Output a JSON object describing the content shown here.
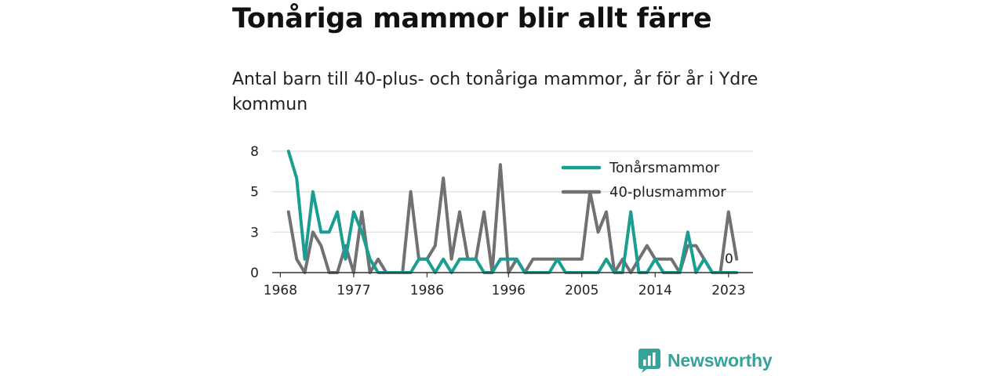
{
  "title": "Tonåriga mammor blir allt färre",
  "subtitle": "Antal barn till 40-plus- och tonåriga mammor, år för år i Ydre kommun",
  "brand": {
    "name": "Newsworthy",
    "icon": "bar-chart-speech-bubble-icon"
  },
  "chart_data": {
    "type": "line",
    "x": [
      1969,
      1970,
      1971,
      1972,
      1973,
      1974,
      1975,
      1976,
      1977,
      1978,
      1979,
      1980,
      1981,
      1982,
      1983,
      1984,
      1985,
      1986,
      1987,
      1988,
      1989,
      1990,
      1991,
      1992,
      1993,
      1994,
      1995,
      1996,
      1997,
      1998,
      1999,
      2000,
      2001,
      2002,
      2003,
      2004,
      2005,
      2006,
      2007,
      2008,
      2009,
      2010,
      2011,
      2012,
      2013,
      2014,
      2015,
      2016,
      2017,
      2018,
      2019,
      2020,
      2021,
      2022,
      2023,
      2024
    ],
    "series": [
      {
        "name": "Tonårsmammor",
        "color": "#1a9e92",
        "values": [
          8,
          6,
          1,
          5,
          3,
          3,
          4,
          1,
          4,
          3,
          1,
          0,
          0,
          0,
          0,
          0,
          1,
          1,
          0,
          1,
          0,
          1,
          1,
          1,
          0,
          0,
          1,
          1,
          1,
          0,
          0,
          0,
          0,
          1,
          0,
          0,
          0,
          0,
          0,
          1,
          0,
          0,
          4,
          0,
          0,
          1,
          0,
          0,
          0,
          3,
          0,
          1,
          0,
          0,
          0,
          0
        ]
      },
      {
        "name": "40-plusmammor",
        "color": "#707075",
        "values": [
          4,
          1,
          0,
          3,
          2,
          0,
          0,
          2,
          0,
          4,
          0,
          1,
          0,
          0,
          0,
          5,
          1,
          1,
          2,
          6,
          1,
          4,
          1,
          1,
          4,
          0,
          7,
          0,
          1,
          0,
          1,
          1,
          1,
          1,
          1,
          1,
          1,
          5,
          3,
          4,
          0,
          1,
          0,
          1,
          2,
          1,
          1,
          1,
          0,
          2,
          2,
          1,
          0,
          0,
          4,
          1
        ]
      }
    ],
    "end_label": "0",
    "yticks": [
      0,
      3,
      5,
      8
    ],
    "xticks": [
      1968,
      1977,
      1986,
      1996,
      2005,
      2014,
      2023
    ],
    "ylim": [
      0,
      9
    ],
    "grid": true,
    "legend_position": "top-right"
  }
}
